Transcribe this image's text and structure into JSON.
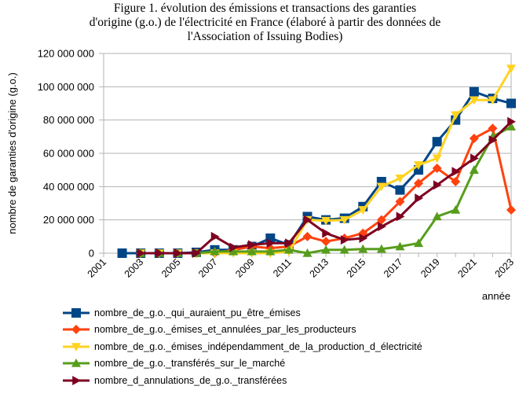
{
  "chart_data": {
    "type": "line",
    "title": [
      "Figure 1. évolution des émissions et transactions des garanties",
      "d'origine (g.o.) de l'électricité en France (élaboré à partir des données de",
      "l'Association of Issuing Bodies)"
    ],
    "xlabel": "année",
    "ylabel": "nombre de garanties d'origine (g.o.)",
    "ylim": [
      0,
      120000000
    ],
    "xlim": [
      2001,
      2023
    ],
    "y_ticks": [
      "0",
      "20 000 000",
      "40 000 000",
      "60 000 000",
      "80 000 000",
      "100 000 000",
      "120 000 000"
    ],
    "x_ticks": [
      "2001",
      "2003",
      "2005",
      "2007",
      "2009",
      "2011",
      "2013",
      "2015",
      "2017",
      "2019",
      "2021",
      "2023"
    ],
    "grid": true,
    "legend_placement": "bottom",
    "series": [
      {
        "name": "nombre_de_g.o._qui_auraient_pu_être_émises",
        "color": "#004586",
        "marker": "square",
        "start": 2002,
        "values": [
          0,
          0,
          0,
          0,
          500000,
          2000000,
          2000000,
          4000000,
          9000000,
          5000000,
          22000000,
          20000000,
          21000000,
          28000000,
          43000000,
          38000000,
          50000000,
          67000000,
          80000000,
          97000000,
          93000000,
          90000000
        ]
      },
      {
        "name": "nombre_de_g.o._émises_et_annulées_par_les_producteurs",
        "color": "#ff420e",
        "marker": "diamond",
        "start": 2003,
        "values": [
          0,
          0,
          0,
          0,
          0,
          2000000,
          4000000,
          3000000,
          4000000,
          10000000,
          7000000,
          9000000,
          12000000,
          20000000,
          31000000,
          42000000,
          51000000,
          43000000,
          69000000,
          75000000,
          26000000
        ]
      },
      {
        "name": "nombre_de_g.o._émises_indépendamment_de_la_production_d_électricité",
        "color": "#ffd320",
        "marker": "triangle-down",
        "start": 2003,
        "values": [
          0,
          0,
          0,
          0,
          0,
          0,
          0,
          0,
          1000000,
          20000000,
          19500000,
          20000000,
          26000000,
          40000000,
          45000000,
          53000000,
          57000000,
          83000000,
          92000000,
          92000000,
          111000000
        ]
      },
      {
        "name": "nombre_de_g.o._transférés_sur_le_marché",
        "color": "#579d1c",
        "marker": "triangle-up",
        "start": 2003,
        "values": [
          0,
          0,
          0,
          0,
          1000000,
          1000000,
          1000000,
          1000000,
          2000000,
          0,
          2000000,
          2000000,
          2500000,
          2500000,
          4000000,
          6000000,
          22000000,
          26000000,
          50000000,
          70000000,
          76000000
        ]
      },
      {
        "name": "nombre_d_annulations_de_g.o._transférées",
        "color": "#7e0021",
        "marker": "triangle-right",
        "start": 2003,
        "values": [
          0,
          0,
          0,
          0,
          10000000,
          3500000,
          5000000,
          6000000,
          6000000,
          20000000,
          12000000,
          8000000,
          9000000,
          16000000,
          22000000,
          33000000,
          41000000,
          49000000,
          57000000,
          68000000,
          79000000
        ]
      }
    ]
  }
}
